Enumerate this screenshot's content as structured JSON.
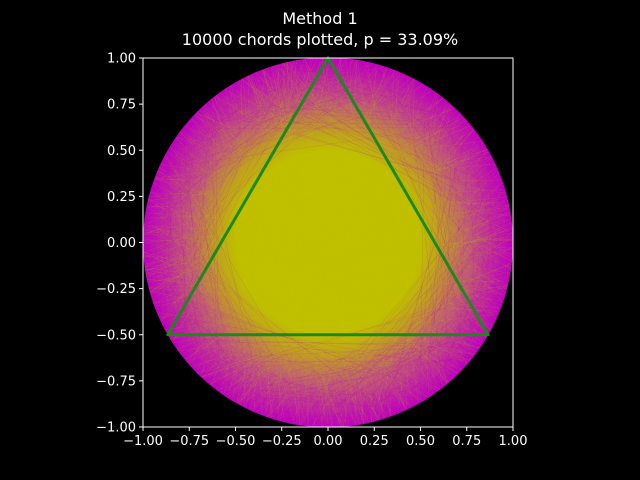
{
  "chart_data": {
    "type": "scatter",
    "title": "Method 1",
    "subtitle": "10000 chords plotted, p = 33.09%",
    "xlim": [
      -1.0,
      1.0
    ],
    "ylim": [
      -1.0,
      1.0
    ],
    "x_ticks": [
      "−1.00",
      "−0.75",
      "−0.50",
      "−0.25",
      "0.00",
      "0.25",
      "0.50",
      "0.75",
      "1.00"
    ],
    "y_ticks": [
      "−1.00",
      "−0.75",
      "−0.50",
      "−0.25",
      "0.00",
      "0.25",
      "0.50",
      "0.75",
      "1.00"
    ],
    "grid": false,
    "chord_count": 10000,
    "probability_percent": 33.09,
    "circle_radius": 1.0,
    "inner_circle_radius": 0.5,
    "triangle_vertices": [
      [
        0.0,
        1.0
      ],
      [
        -0.866,
        -0.5
      ],
      [
        0.866,
        -0.5
      ]
    ],
    "colors": {
      "background": "#000000",
      "long_chord": "#bfbf00",
      "short_chord": "#c000c0",
      "triangle": "#1a8a1a",
      "axes": "#ffffff"
    }
  }
}
